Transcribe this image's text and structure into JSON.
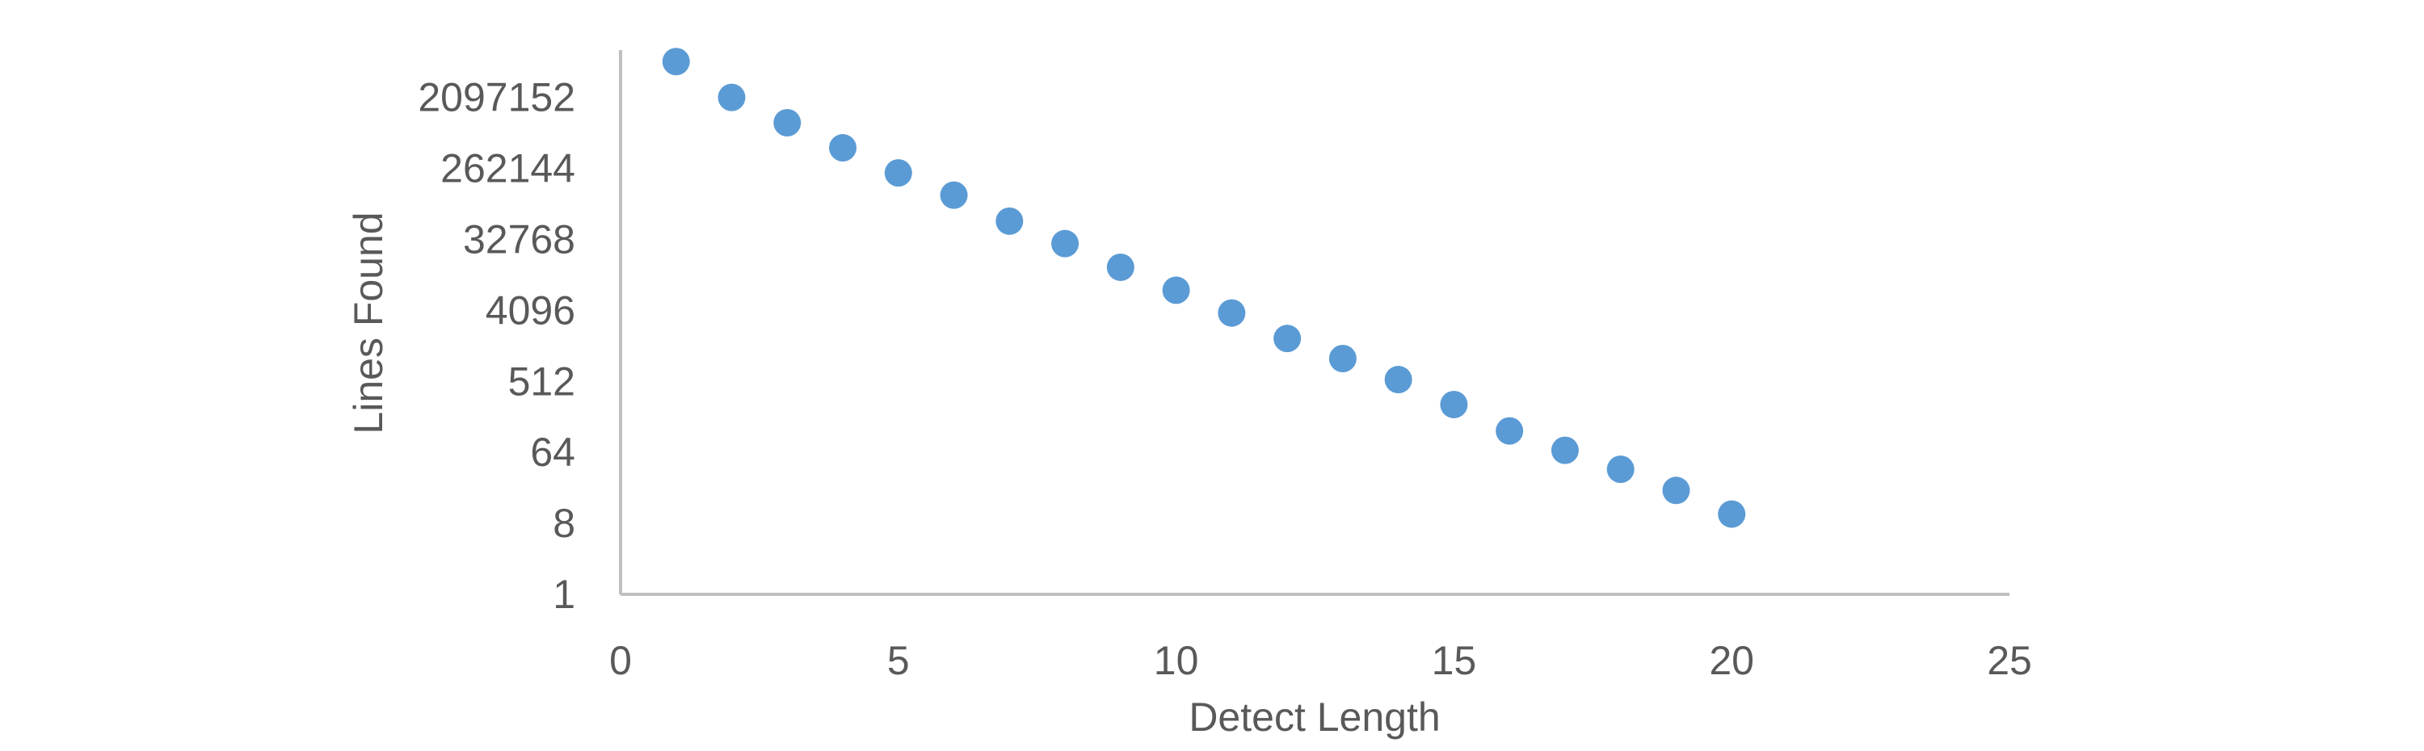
{
  "chart_data": {
    "type": "scatter",
    "title": "",
    "xlabel": "Detect Length",
    "ylabel": "Lines Found",
    "xlim": [
      0,
      25
    ],
    "ylim": [
      1,
      16777216
    ],
    "yscale": "log2",
    "grid": false,
    "legend": "none",
    "marker_color": "#5b9bd5",
    "axis_color": "#bfbfbf",
    "text_color": "#595959",
    "x_ticks": [
      0,
      5,
      10,
      15,
      20,
      25
    ],
    "x_tick_labels": [
      "0",
      "5",
      "10",
      "15",
      "20",
      "25"
    ],
    "y_ticks": [
      1,
      8,
      64,
      512,
      4096,
      32768,
      262144,
      2097152
    ],
    "y_tick_labels": [
      "1",
      "8",
      "64",
      "512",
      "4096",
      "32768",
      "262144",
      "2097152"
    ],
    "series": [
      {
        "x": [
          1,
          2,
          3,
          4,
          5,
          6,
          7,
          8,
          9,
          10,
          11,
          12,
          13,
          14,
          15,
          16,
          17,
          18,
          19,
          20
        ],
        "y": [
          6000000,
          2100000,
          1000000,
          480000,
          230000,
          120000,
          56000,
          29000,
          14500,
          7400,
          3800,
          1800,
          1000,
          540,
          260,
          120,
          68,
          39,
          21,
          10.5
        ]
      }
    ]
  }
}
